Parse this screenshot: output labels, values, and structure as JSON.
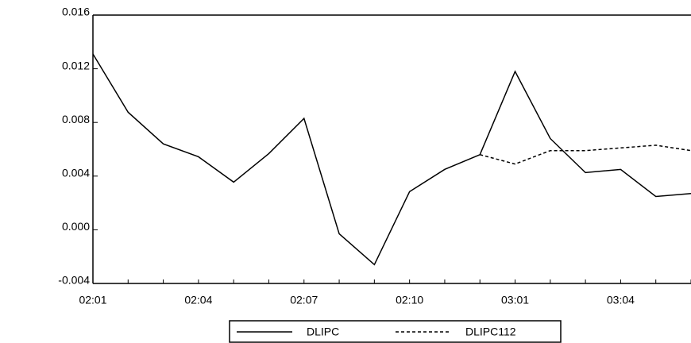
{
  "chart_data": {
    "type": "line",
    "categories": [
      "02:01",
      null,
      null,
      "02:04",
      null,
      null,
      "02:07",
      null,
      null,
      "02:10",
      null,
      null,
      "03:01",
      null,
      null,
      "03:04",
      null,
      null
    ],
    "series": [
      {
        "name": "DLIPC",
        "color": "#000000",
        "style": "solid",
        "values": [
          0.0131,
          0.00876,
          0.0064,
          0.00544,
          0.00355,
          0.00568,
          0.0083,
          -0.0003,
          -0.0026,
          0.00284,
          0.0045,
          0.0056,
          0.0118,
          0.0068,
          0.00426,
          0.0045,
          0.00248,
          0.0027
        ]
      },
      {
        "name": "DLIPC112",
        "color": "#000000",
        "style": "dashed",
        "values": [
          null,
          null,
          null,
          null,
          null,
          null,
          null,
          null,
          null,
          null,
          null,
          0.0056,
          0.0049,
          0.0059,
          0.0059,
          0.0061,
          0.0063,
          0.0059
        ]
      }
    ],
    "ylim": [
      -0.004,
      0.016
    ],
    "yticks": [
      {
        "value": -0.004,
        "label": "-0.004"
      },
      {
        "value": 0,
        "label": "0.000"
      },
      {
        "value": 0.004,
        "label": "0.004"
      },
      {
        "value": 0.008,
        "label": "0.008"
      },
      {
        "value": 0.012,
        "label": "0.012"
      },
      {
        "value": 0.016,
        "label": "0.016"
      }
    ],
    "legend": "bottom"
  }
}
